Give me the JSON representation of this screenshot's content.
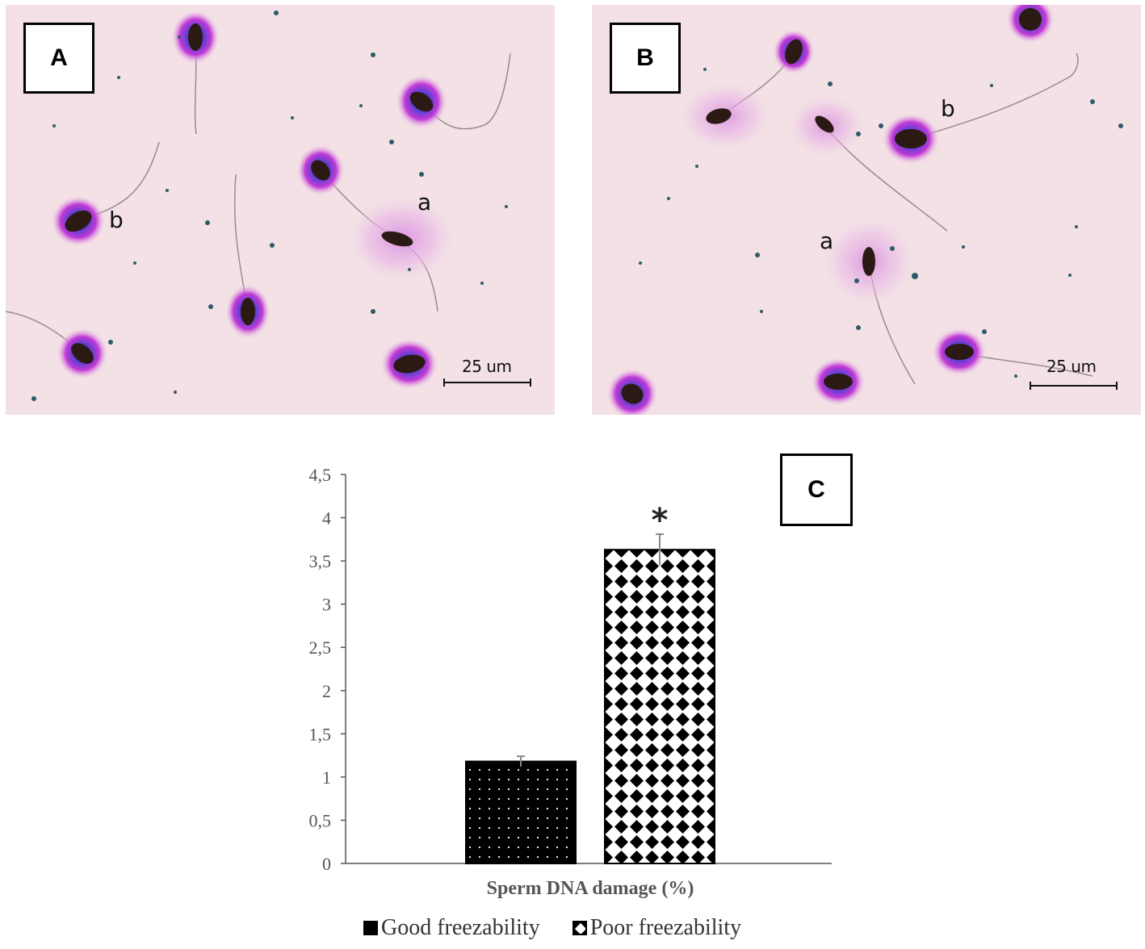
{
  "panels": [
    {
      "label": "A",
      "scale_bar": "25 um",
      "cell_tags": [
        "a",
        "b"
      ]
    },
    {
      "label": "B",
      "scale_bar": "25 um",
      "cell_tags": [
        "a",
        "b"
      ]
    }
  ],
  "chart_data": {
    "type": "bar",
    "panel_label": "C",
    "categories": [
      "Sperm DNA damage (%)"
    ],
    "xlabel": "Sperm DNA damage (%)",
    "ylabel": "",
    "ylim": [
      0,
      4.5
    ],
    "yticks": [
      "0",
      "0,5",
      "1",
      "1,5",
      "2",
      "2,5",
      "3",
      "3,5",
      "4",
      "4,5"
    ],
    "series": [
      {
        "name": "Good freezability",
        "values": [
          1.18
        ],
        "error": [
          0.06
        ],
        "pattern": "dots",
        "color": "#000000"
      },
      {
        "name": "Poor freezability",
        "values": [
          3.63
        ],
        "error": [
          0.18
        ],
        "pattern": "diamonds",
        "color": "#000000",
        "annotation": "*"
      }
    ],
    "grid": false,
    "legend_position": "bottom"
  }
}
